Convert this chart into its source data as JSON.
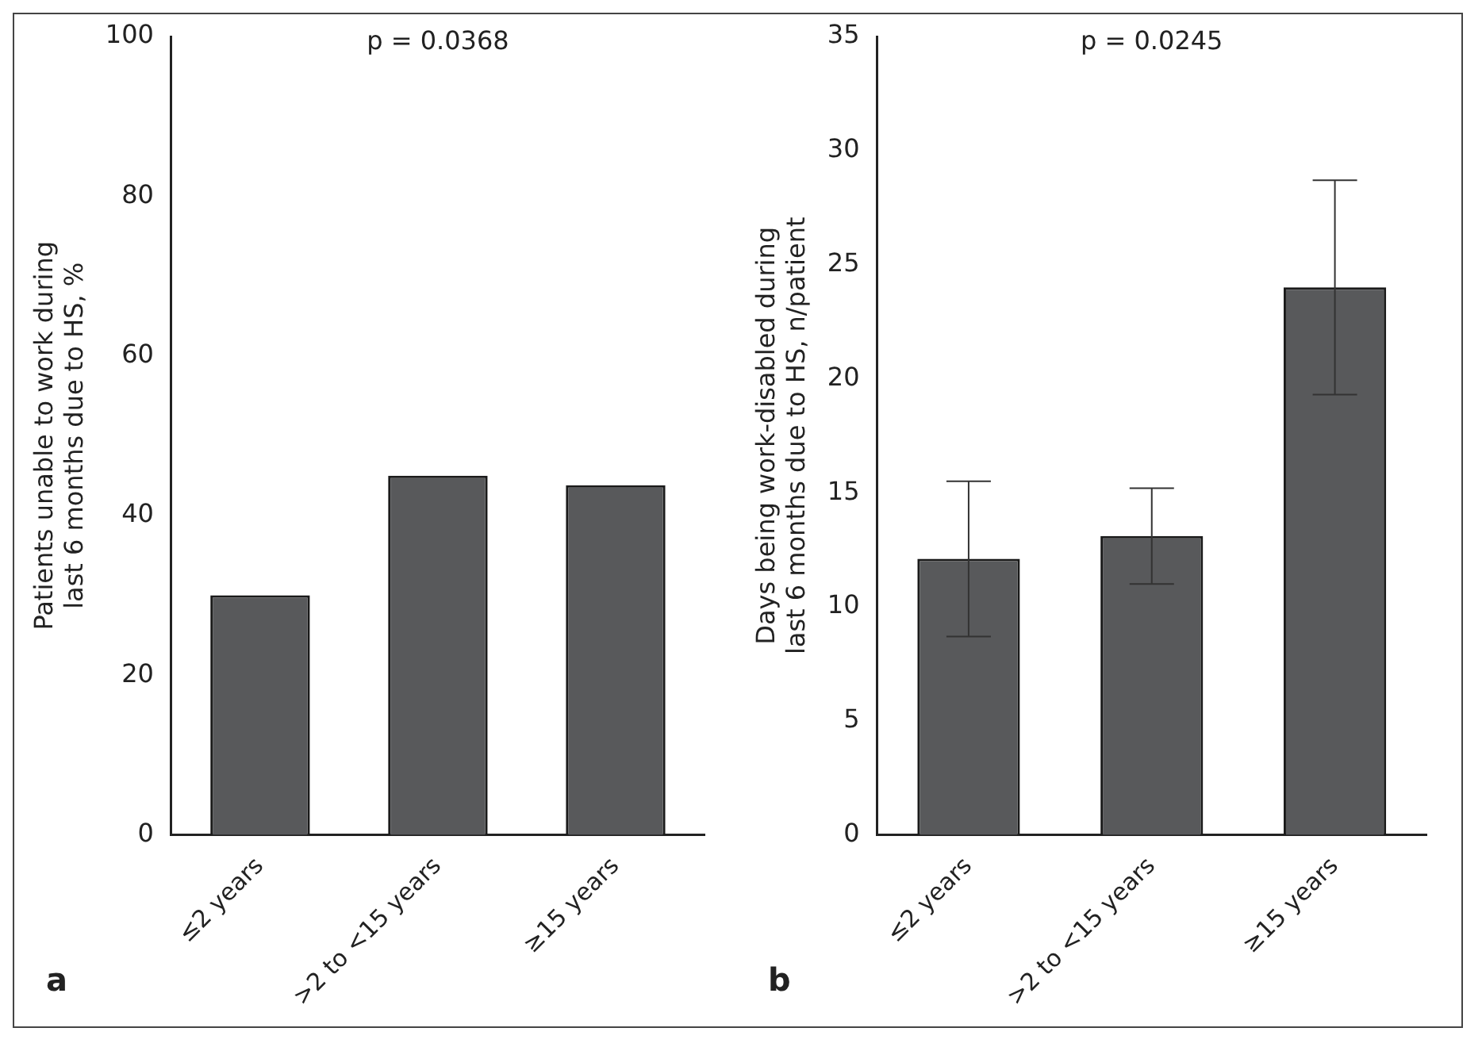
{
  "chart_data": [
    {
      "type": "bar",
      "categories": [
        "≤2 years",
        ">2 to <15 years",
        "≥15 years"
      ],
      "values": [
        30,
        45,
        43.8
      ],
      "color": "#58595b",
      "ylabel": "Patients unable to work during last 6 months due to HS, %",
      "ylim": [
        0,
        100
      ],
      "yticks": [
        0,
        20,
        40,
        60,
        80,
        100
      ],
      "annotations": [
        "p = 0.0368",
        "a"
      ]
    },
    {
      "type": "bar",
      "categories": [
        "≤2 years",
        ">2 to <15 years",
        "≥15 years"
      ],
      "values": [
        12.1,
        13.1,
        24.0
      ],
      "errors": [
        [
          8.7,
          15.5
        ],
        [
          11.0,
          15.2
        ],
        [
          19.3,
          28.7
        ]
      ],
      "color": "#58595b",
      "ylabel": "Days being work-disabled during last 6 months due to HS, n/patient",
      "ylim": [
        0,
        35
      ],
      "yticks": [
        0,
        5,
        10,
        15,
        20,
        25,
        30,
        35
      ],
      "annotations": [
        "p = 0.0245",
        "b"
      ]
    }
  ]
}
